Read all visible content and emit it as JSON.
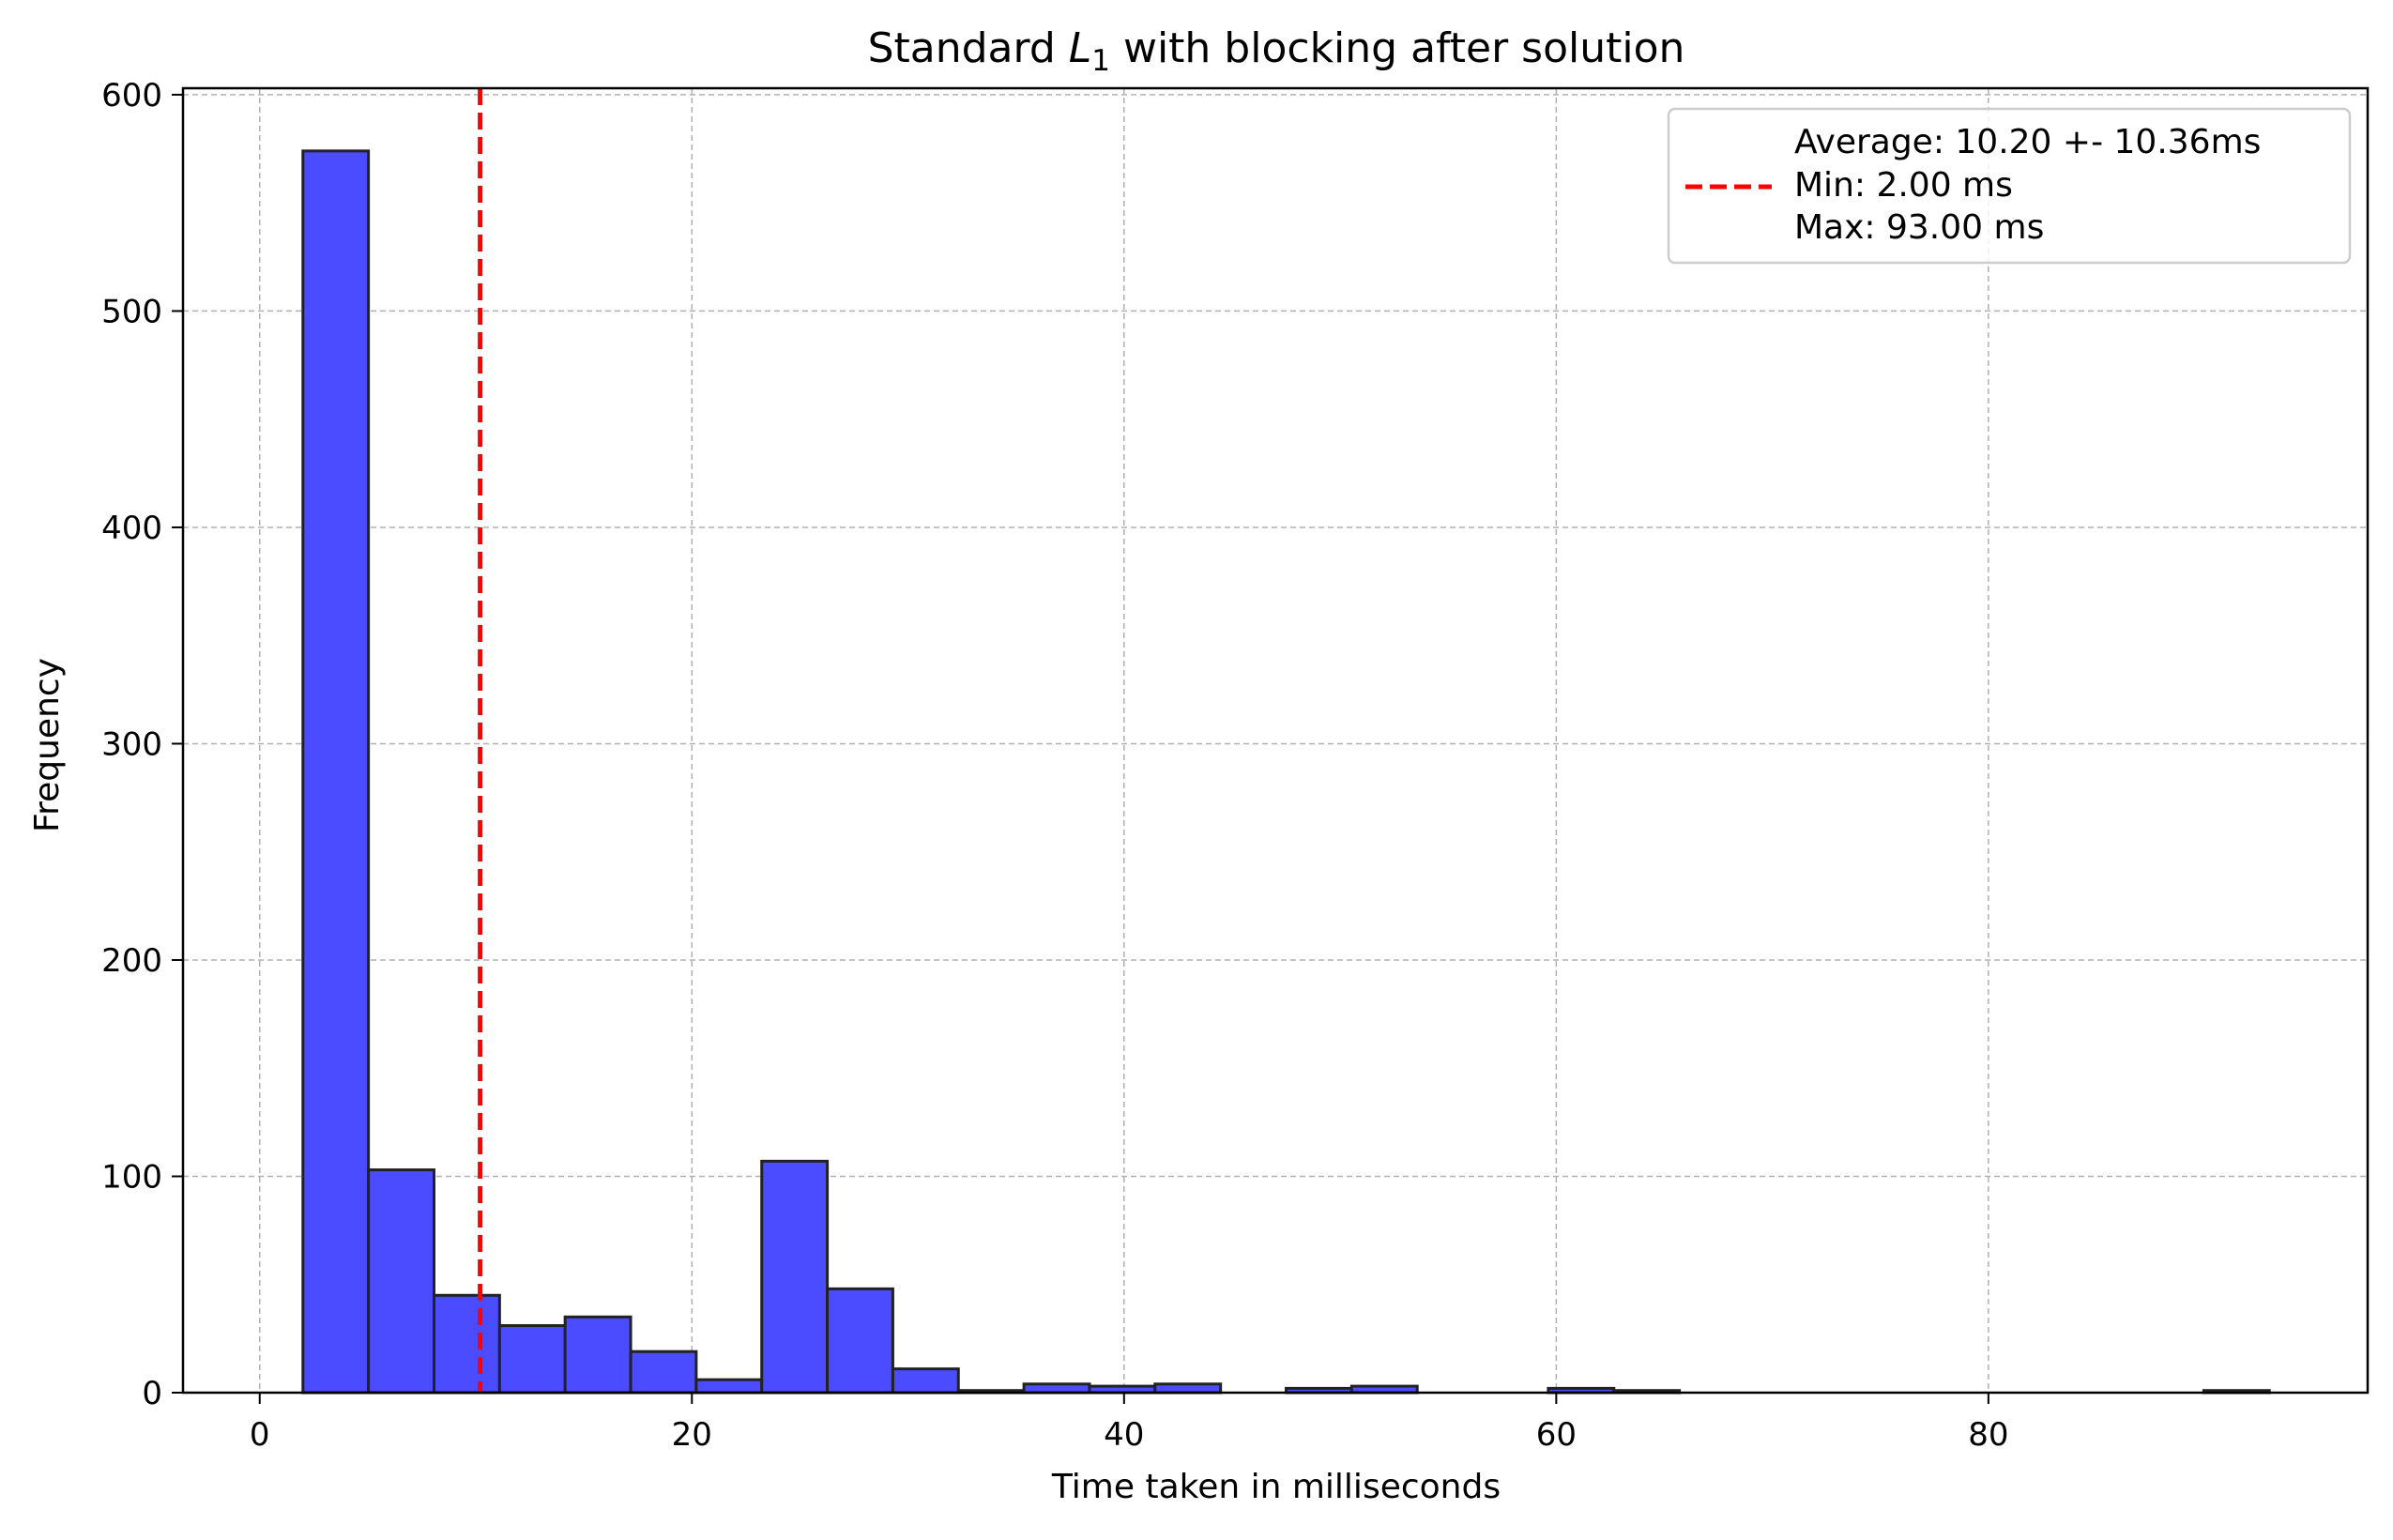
{
  "chart_data": {
    "type": "bar",
    "title": {
      "prefix": "Standard ",
      "math_var": "L",
      "math_sub": "1",
      "suffix": " with blocking after solution"
    },
    "xlabel": "Time taken in milliseconds",
    "ylabel": "Frequency",
    "xlim": [
      -3.55,
      97.55
    ],
    "ylim": [
      0,
      603
    ],
    "xticks": [
      0,
      20,
      40,
      60,
      80
    ],
    "yticks": [
      0,
      100,
      200,
      300,
      400,
      500,
      600
    ],
    "grid": true,
    "bin_edges": [
      2,
      5.033,
      8.067,
      11.1,
      14.133,
      17.167,
      20.2,
      23.233,
      26.267,
      29.3,
      32.333,
      35.367,
      38.4,
      41.433,
      44.467,
      47.5,
      50.533,
      53.567,
      56.6,
      59.633,
      62.667,
      65.7,
      68.733,
      71.767,
      74.8,
      77.833,
      80.867,
      83.9,
      86.933,
      89.967,
      93
    ],
    "counts": [
      574,
      103,
      45,
      31,
      35,
      19,
      6,
      107,
      48,
      11,
      1,
      4,
      3,
      4,
      0,
      2,
      3,
      0,
      0,
      2,
      1,
      0,
      0,
      0,
      0,
      0,
      0,
      0,
      0,
      1
    ],
    "bar_color": "#4b4bff",
    "bar_edge_color": "#222222",
    "average_line": {
      "x": 10.2,
      "color": "#ff0000",
      "style": "dashed"
    },
    "legend": {
      "placement": "top-right",
      "entries": [
        "Average: 10.20 +- 10.36ms",
        "Min: 2.00 ms",
        "Max: 93.00 ms"
      ]
    }
  }
}
